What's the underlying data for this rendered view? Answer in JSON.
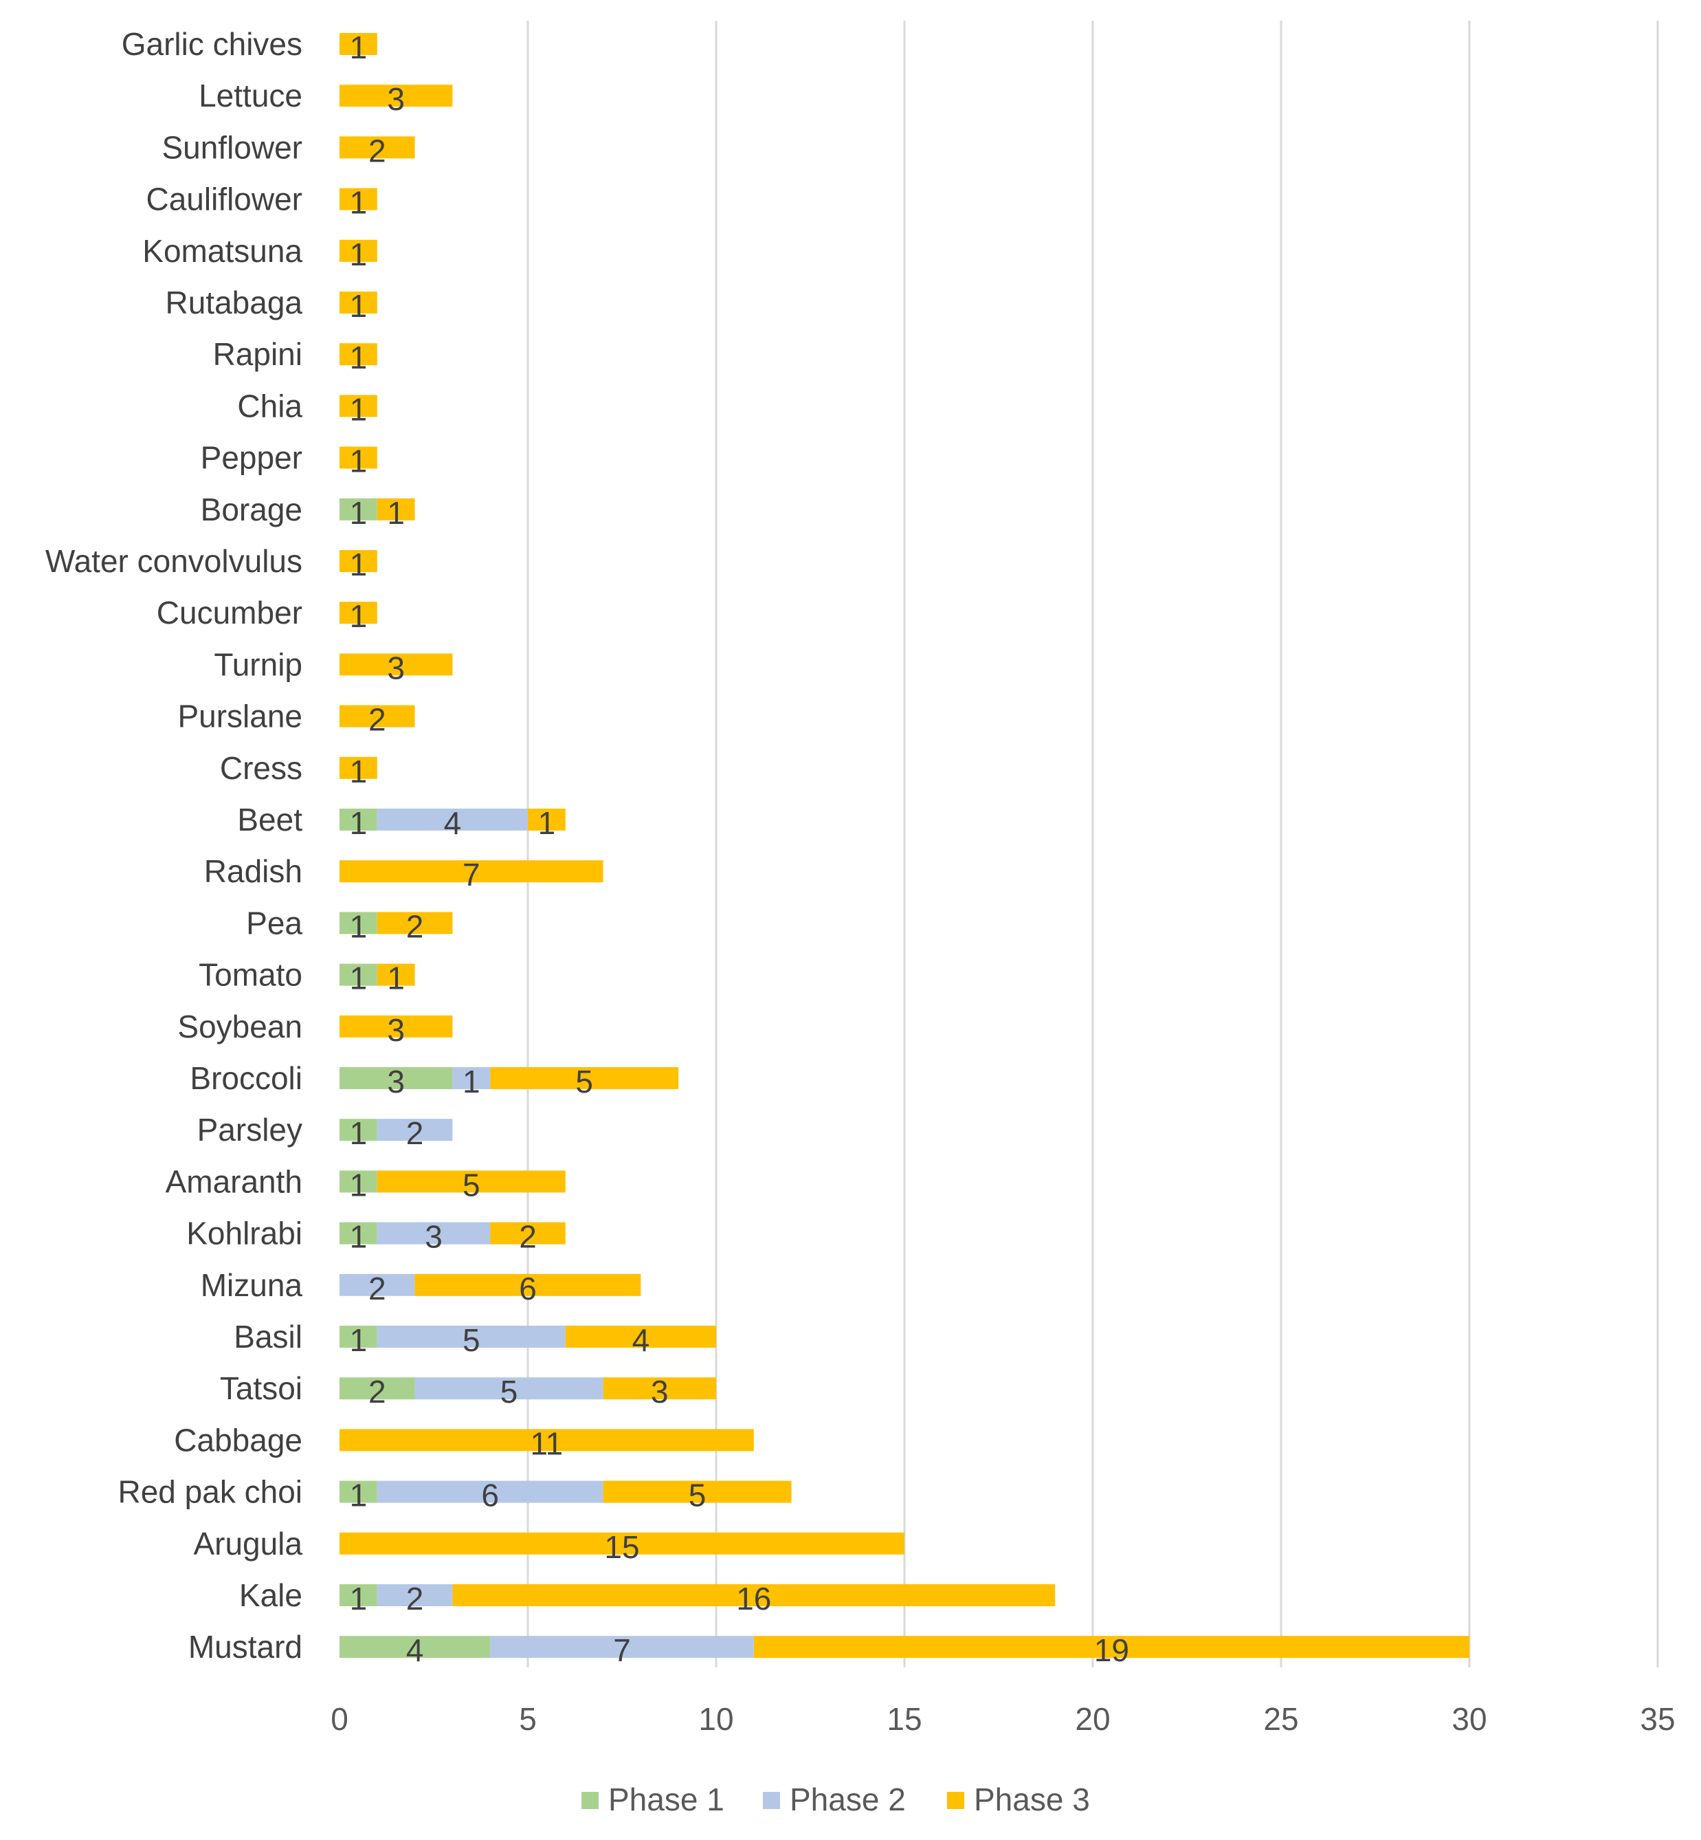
{
  "chart_data": {
    "type": "bar",
    "orientation": "horizontal",
    "stacked": true,
    "title": "",
    "xlabel": "",
    "ylabel": "",
    "xlim": [
      0,
      35
    ],
    "x_ticks": [
      0,
      5,
      10,
      15,
      20,
      25,
      30,
      35
    ],
    "grid": "vertical",
    "legend_position": "bottom",
    "categories": [
      "Garlic chives",
      "Lettuce",
      "Sunflower",
      "Cauliflower",
      "Komatsuna",
      "Rutabaga",
      "Rapini",
      "Chia",
      "Pepper",
      "Borage",
      "Water convolvulus",
      "Cucumber",
      "Turnip",
      "Purslane",
      "Cress",
      "Beet",
      "Radish",
      "Pea",
      "Tomato",
      "Soybean",
      "Broccoli",
      "Parsley",
      "Amaranth",
      "Kohlrabi",
      "Mizuna",
      "Basil",
      "Tatsoi",
      "Cabbage",
      "Red pak choi",
      "Arugula",
      "Kale",
      "Mustard"
    ],
    "series": [
      {
        "name": "Phase 1",
        "color": "#a9d18e",
        "values": [
          0,
          0,
          0,
          0,
          0,
          0,
          0,
          0,
          0,
          1,
          0,
          0,
          0,
          0,
          0,
          1,
          0,
          1,
          1,
          0,
          3,
          1,
          1,
          1,
          0,
          1,
          2,
          0,
          1,
          0,
          1,
          4
        ]
      },
      {
        "name": "Phase 2",
        "color": "#b4c7e7",
        "values": [
          0,
          0,
          0,
          0,
          0,
          0,
          0,
          0,
          0,
          0,
          0,
          0,
          0,
          0,
          0,
          4,
          0,
          0,
          0,
          0,
          1,
          2,
          0,
          3,
          2,
          5,
          5,
          0,
          6,
          0,
          2,
          7
        ]
      },
      {
        "name": "Phase 3",
        "color": "#ffc000",
        "values": [
          1,
          3,
          2,
          1,
          1,
          1,
          1,
          1,
          1,
          1,
          1,
          1,
          3,
          2,
          1,
          1,
          7,
          2,
          1,
          3,
          5,
          0,
          5,
          2,
          6,
          4,
          3,
          11,
          5,
          15,
          16,
          19
        ]
      }
    ]
  }
}
